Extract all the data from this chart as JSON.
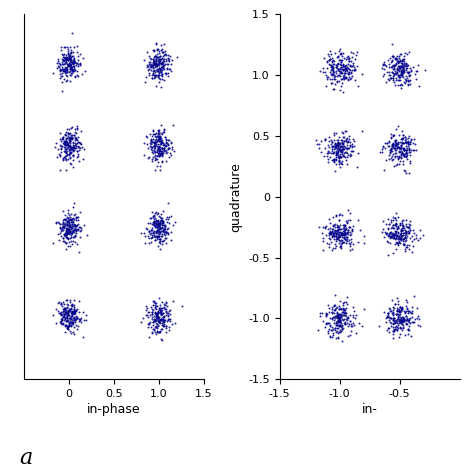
{
  "subplot_a_label": "a",
  "subplot_a_xlabel": "in-phase",
  "subplot_b_xlabel": "in-",
  "ylabel": "quadrature",
  "dot_color": "#00008B",
  "dot_size": 2.0,
  "dot_alpha": 0.85,
  "n_points": 200,
  "sigma": 0.065,
  "plot_a": {
    "centers_x": [
      0.0,
      1.0,
      0.0,
      1.0,
      0.0,
      1.0,
      0.0,
      1.0
    ],
    "centers_y": [
      1.1,
      1.1,
      0.45,
      0.45,
      -0.2,
      -0.2,
      -0.9,
      -0.9
    ],
    "xlim": [
      -0.5,
      1.5
    ],
    "ylim": [
      -1.4,
      1.5
    ],
    "xticks": [
      0.0,
      0.5,
      1.0,
      1.5
    ],
    "xtick_labels": [
      "0",
      "0.5",
      "1.0",
      "1.5"
    ]
  },
  "plot_b": {
    "centers_x": [
      -1.0,
      -0.5,
      -1.0,
      -0.5,
      -1.0,
      -0.5,
      -1.0,
      -0.5
    ],
    "centers_y": [
      1.05,
      1.05,
      0.4,
      0.4,
      -0.3,
      -0.3,
      -1.0,
      -1.0
    ],
    "xlim": [
      -1.5,
      0.0
    ],
    "ylim": [
      -1.5,
      1.5
    ],
    "xticks": [
      -1.5,
      -1.0,
      -0.5
    ],
    "xtick_labels": [
      "-1.5",
      "-1.0",
      "-0.5"
    ],
    "yticks": [
      -1.5,
      -1.0,
      -0.5,
      0.0,
      0.5,
      1.0,
      1.5
    ],
    "ytick_labels": [
      "-1.5",
      "-1.0",
      "-0.5",
      "0",
      "0.5",
      "1.0",
      "1.5"
    ]
  },
  "seed": 42,
  "fig_width": 4.74,
  "fig_height": 4.74,
  "dpi": 100,
  "tick_fontsize": 8,
  "label_fontsize": 9,
  "a_label_fontsize": 16
}
